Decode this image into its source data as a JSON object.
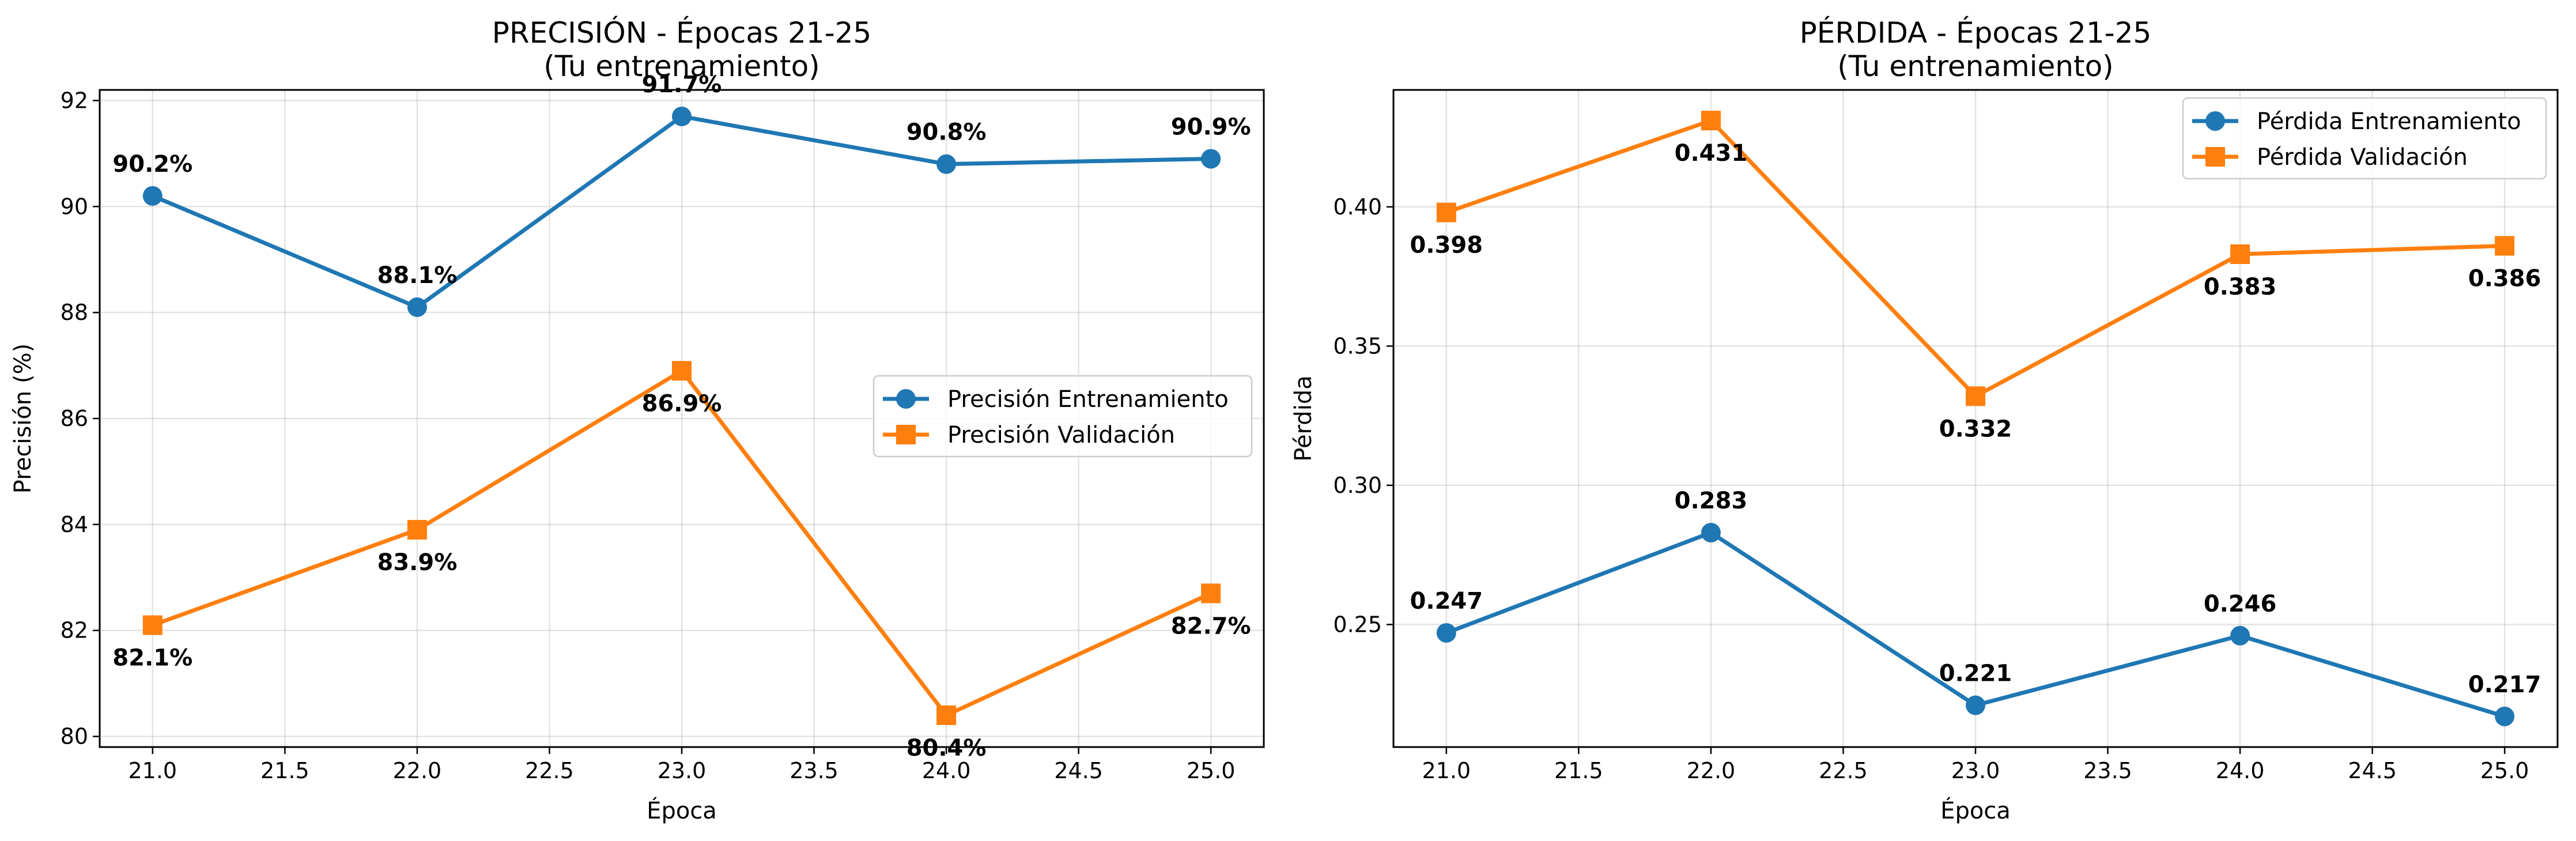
{
  "chart_data": [
    {
      "type": "line",
      "title": "PRECISIÓN - Épocas 21-25",
      "subtitle": "(Tu entrenamiento)",
      "xlabel": "Época",
      "ylabel": "Precisión (%)",
      "xlim": [
        20.8,
        25.2
      ],
      "ylim": [
        79.8,
        92.2
      ],
      "xticks": [
        21.0,
        21.5,
        22.0,
        22.5,
        23.0,
        23.5,
        24.0,
        24.5,
        25.0
      ],
      "yticks": [
        80,
        82,
        84,
        86,
        88,
        90,
        92
      ],
      "grid": true,
      "legend_position": "center-right",
      "x": [
        21,
        22,
        23,
        24,
        25
      ],
      "series": [
        {
          "name": "Precisión Entrenamiento",
          "values": [
            90.2,
            88.1,
            91.7,
            90.8,
            90.9
          ],
          "labels": [
            "90.2%",
            "88.1%",
            "91.7%",
            "90.8%",
            "90.9%"
          ],
          "label_side": "above",
          "color": "#1f77b4",
          "marker": "circle"
        },
        {
          "name": "Precisión Validación",
          "values": [
            82.1,
            83.9,
            86.9,
            80.4,
            82.7
          ],
          "labels": [
            "82.1%",
            "83.9%",
            "86.9%",
            "80.4%",
            "82.7%"
          ],
          "label_side": "below",
          "color": "#ff7f0e",
          "marker": "square"
        }
      ]
    },
    {
      "type": "line",
      "title": "PÉRDIDA - Épocas 21-25",
      "subtitle": "(Tu entrenamiento)",
      "xlabel": "Época",
      "ylabel": "Pérdida",
      "xlim": [
        20.8,
        25.2
      ],
      "ylim": [
        0.206,
        0.442
      ],
      "xticks": [
        21.0,
        21.5,
        22.0,
        22.5,
        23.0,
        23.5,
        24.0,
        24.5,
        25.0
      ],
      "yticks": [
        0.25,
        0.3,
        0.35,
        0.4
      ],
      "grid": true,
      "legend_position": "top-right",
      "x": [
        21,
        22,
        23,
        24,
        25
      ],
      "series": [
        {
          "name": "Pérdida Entrenamiento",
          "values": [
            0.247,
            0.283,
            0.221,
            0.246,
            0.217
          ],
          "labels": [
            "0.247",
            "0.283",
            "0.221",
            "0.246",
            "0.217"
          ],
          "label_side": "above",
          "color": "#1f77b4",
          "marker": "circle"
        },
        {
          "name": "Pérdida Validación",
          "values": [
            0.398,
            0.431,
            0.332,
            0.383,
            0.386
          ],
          "labels": [
            "0.398",
            "0.431",
            "0.332",
            "0.383",
            "0.386"
          ],
          "label_side": "below",
          "color": "#ff7f0e",
          "marker": "square"
        }
      ]
    }
  ]
}
